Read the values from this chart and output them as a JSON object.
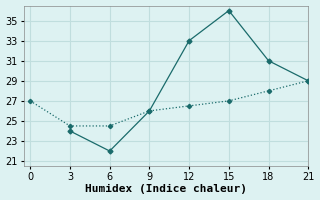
{
  "line1_x": [
    0,
    3,
    6,
    9,
    12,
    15,
    18,
    21
  ],
  "line1_y": [
    27,
    24.5,
    24.5,
    26,
    26.5,
    27,
    28,
    29
  ],
  "line2_x": [
    3,
    6,
    9,
    12,
    15,
    18,
    21
  ],
  "line2_y": [
    24,
    22,
    26,
    33,
    36,
    31,
    29
  ],
  "color": "#1a6b6b",
  "xlabel": "Humidex (Indice chaleur)",
  "xlim": [
    -0.5,
    21
  ],
  "ylim": [
    20.5,
    36.5
  ],
  "yticks": [
    21,
    23,
    25,
    27,
    29,
    31,
    33,
    35
  ],
  "xticks": [
    0,
    3,
    6,
    9,
    12,
    15,
    18,
    21
  ],
  "background_color": "#ddf2f2",
  "grid_color": "#c0dede",
  "xlabel_fontsize": 8,
  "tick_fontsize": 7
}
